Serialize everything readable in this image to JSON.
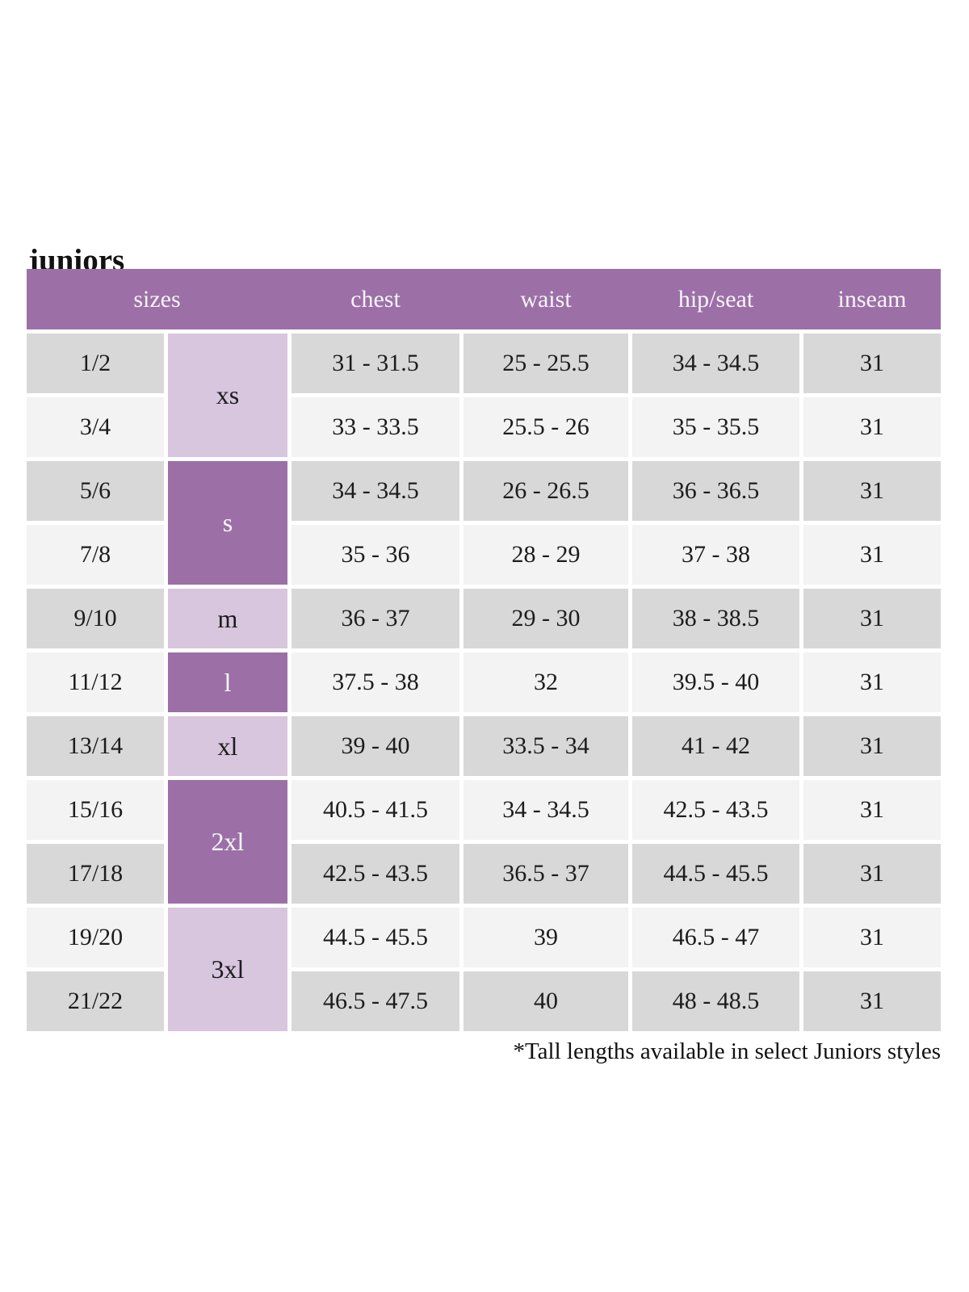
{
  "title": "juniors",
  "footnote": "*Tall lengths available in select Juniors styles",
  "colors": {
    "header_purple": "#9c70a7",
    "group_dark_purple": "#9c70a7",
    "group_light_purple": "#d8c5de",
    "row_gray": "#d8d8d8",
    "row_light": "#f3f3f3",
    "header_text": "#f8f4f9",
    "body_text": "#1c1c1c"
  },
  "table": {
    "headers": {
      "sizes": "sizes",
      "chest": "chest",
      "waist": "waist",
      "hip_seat": "hip/seat",
      "inseam": "inseam"
    },
    "size_groups": [
      {
        "label": "xs",
        "spans_rows": "1/2, 3/4",
        "shade": "light"
      },
      {
        "label": "s",
        "spans_rows": "5/6, 7/8",
        "shade": "dark"
      },
      {
        "label": "m",
        "spans_rows": "9/10",
        "shade": "light"
      },
      {
        "label": "l",
        "spans_rows": "11/12",
        "shade": "dark"
      },
      {
        "label": "xl",
        "spans_rows": "13/14",
        "shade": "light"
      },
      {
        "label": "2xl",
        "spans_rows": "15/16, 17/18",
        "shade": "dark"
      },
      {
        "label": "3xl",
        "spans_rows": "19/20, 21/22",
        "shade": "light"
      }
    ],
    "rows": [
      {
        "size": "1/2",
        "chest": "31 - 31.5",
        "waist": "25 - 25.5",
        "hip_seat": "34 - 34.5",
        "inseam": "31"
      },
      {
        "size": "3/4",
        "chest": "33 - 33.5",
        "waist": "25.5 - 26",
        "hip_seat": "35 - 35.5",
        "inseam": "31"
      },
      {
        "size": "5/6",
        "chest": "34 - 34.5",
        "waist": "26 - 26.5",
        "hip_seat": "36 - 36.5",
        "inseam": "31"
      },
      {
        "size": "7/8",
        "chest": "35 - 36",
        "waist": "28 - 29",
        "hip_seat": "37 - 38",
        "inseam": "31"
      },
      {
        "size": "9/10",
        "chest": "36 - 37",
        "waist": "29 - 30",
        "hip_seat": "38 - 38.5",
        "inseam": "31"
      },
      {
        "size": "11/12",
        "chest": "37.5 - 38",
        "waist": "32",
        "hip_seat": "39.5 - 40",
        "inseam": "31"
      },
      {
        "size": "13/14",
        "chest": "39 - 40",
        "waist": "33.5 - 34",
        "hip_seat": "41 - 42",
        "inseam": "31"
      },
      {
        "size": "15/16",
        "chest": "40.5 - 41.5",
        "waist": "34 - 34.5",
        "hip_seat": "42.5 - 43.5",
        "inseam": "31"
      },
      {
        "size": "17/18",
        "chest": "42.5 - 43.5",
        "waist": "36.5 - 37",
        "hip_seat": "44.5 - 45.5",
        "inseam": "31"
      },
      {
        "size": "19/20",
        "chest": "44.5 - 45.5",
        "waist": "39",
        "hip_seat": "46.5 - 47",
        "inseam": "31"
      },
      {
        "size": "21/22",
        "chest": "46.5 - 47.5",
        "waist": "40",
        "hip_seat": "48 - 48.5",
        "inseam": "31"
      }
    ]
  }
}
